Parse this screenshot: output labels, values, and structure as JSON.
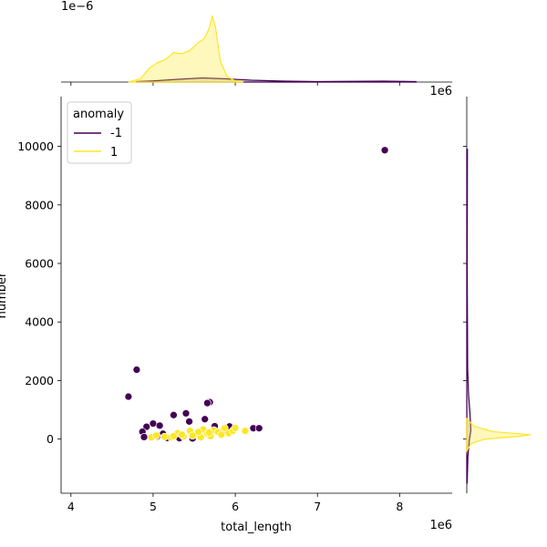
{
  "chart_data": {
    "type": "scatter",
    "title": "",
    "xlabel": "total_length",
    "ylabel": "number",
    "x_multiplier_label": "1e6",
    "y_multiplier_label": "",
    "xlim": [
      3.88,
      8.64
    ],
    "ylim": [
      -1850,
      11700
    ],
    "x_ticks": [
      4,
      5,
      6,
      7,
      8
    ],
    "y_ticks": [
      0,
      2000,
      4000,
      6000,
      8000,
      10000
    ],
    "grid": false,
    "legend": {
      "title": "anomaly",
      "placement": "top-left",
      "entries": [
        {
          "label": "-1",
          "color": "#440154"
        },
        {
          "label": "1",
          "color": "#fde725"
        }
      ]
    },
    "series": [
      {
        "name": "-1",
        "color": "#440154",
        "points": [
          [
            7.82,
            9870
          ],
          [
            4.8,
            2370
          ],
          [
            4.7,
            1450
          ],
          [
            5.69,
            1260
          ],
          [
            5.66,
            1230
          ],
          [
            5.4,
            880
          ],
          [
            5.25,
            820
          ],
          [
            5.63,
            680
          ],
          [
            5.44,
            600
          ],
          [
            5.0,
            530
          ],
          [
            5.08,
            460
          ],
          [
            4.92,
            420
          ],
          [
            5.75,
            440
          ],
          [
            5.93,
            430
          ],
          [
            6.22,
            370
          ],
          [
            6.29,
            370
          ],
          [
            5.86,
            330
          ],
          [
            4.87,
            250
          ],
          [
            5.12,
            180
          ],
          [
            5.28,
            120
          ],
          [
            5.05,
            90
          ],
          [
            4.89,
            70
          ],
          [
            5.17,
            40
          ],
          [
            5.32,
            30
          ],
          [
            5.48,
            20
          ]
        ]
      },
      {
        "name": "1",
        "color": "#fde725",
        "points": [
          [
            4.98,
            60
          ],
          [
            5.04,
            120
          ],
          [
            5.14,
            80
          ],
          [
            5.22,
            60
          ],
          [
            5.3,
            200
          ],
          [
            5.37,
            90
          ],
          [
            5.45,
            280
          ],
          [
            5.52,
            160
          ],
          [
            5.58,
            60
          ],
          [
            5.61,
            330
          ],
          [
            5.66,
            180
          ],
          [
            5.7,
            100
          ],
          [
            5.74,
            300
          ],
          [
            5.79,
            240
          ],
          [
            5.83,
            150
          ],
          [
            5.87,
            370
          ],
          [
            5.92,
            200
          ],
          [
            5.97,
            280
          ],
          [
            6.0,
            380
          ],
          [
            6.12,
            280
          ],
          [
            5.55,
            240
          ],
          [
            5.35,
            150
          ],
          [
            5.25,
            100
          ],
          [
            5.68,
            220
          ],
          [
            5.48,
            120
          ]
        ]
      }
    ],
    "marginal_x": {
      "multiplier_label": "1e−6",
      "densities": [
        {
          "name": "-1",
          "x": [
            4.8,
            5.0,
            5.3,
            5.6,
            5.9,
            6.2,
            6.6,
            7.0,
            7.4,
            7.8,
            8.2
          ],
          "y": [
            0.02,
            0.05,
            0.12,
            0.18,
            0.14,
            0.08,
            0.04,
            0.02,
            0.03,
            0.04,
            0.02
          ]
        },
        {
          "name": "1",
          "x": [
            4.7,
            4.85,
            4.95,
            5.05,
            5.15,
            5.25,
            5.35,
            5.45,
            5.55,
            5.62,
            5.68,
            5.72,
            5.76,
            5.82,
            5.9,
            6.0,
            6.1
          ],
          "y": [
            0.0,
            0.15,
            0.6,
            0.85,
            1.0,
            1.3,
            1.25,
            1.4,
            1.75,
            1.9,
            2.35,
            2.9,
            2.4,
            0.9,
            0.25,
            0.05,
            0.0
          ]
        }
      ]
    },
    "marginal_y": {
      "densities": [
        {
          "name": "-1",
          "y": [
            -1500,
            -600,
            0,
            300,
            900,
            1500,
            2400,
            6000,
            9900
          ],
          "x": [
            0.02,
            0.05,
            0.12,
            0.18,
            0.14,
            0.08,
            0.04,
            0.02,
            0.03
          ]
        },
        {
          "name": "1",
          "y": [
            -400,
            -150,
            0,
            50,
            100,
            150,
            200,
            250,
            330,
            450,
            700
          ],
          "x": [
            0.0,
            0.2,
            0.8,
            1.6,
            2.4,
            2.8,
            2.0,
            1.2,
            0.8,
            0.3,
            0.0
          ]
        }
      ]
    }
  }
}
